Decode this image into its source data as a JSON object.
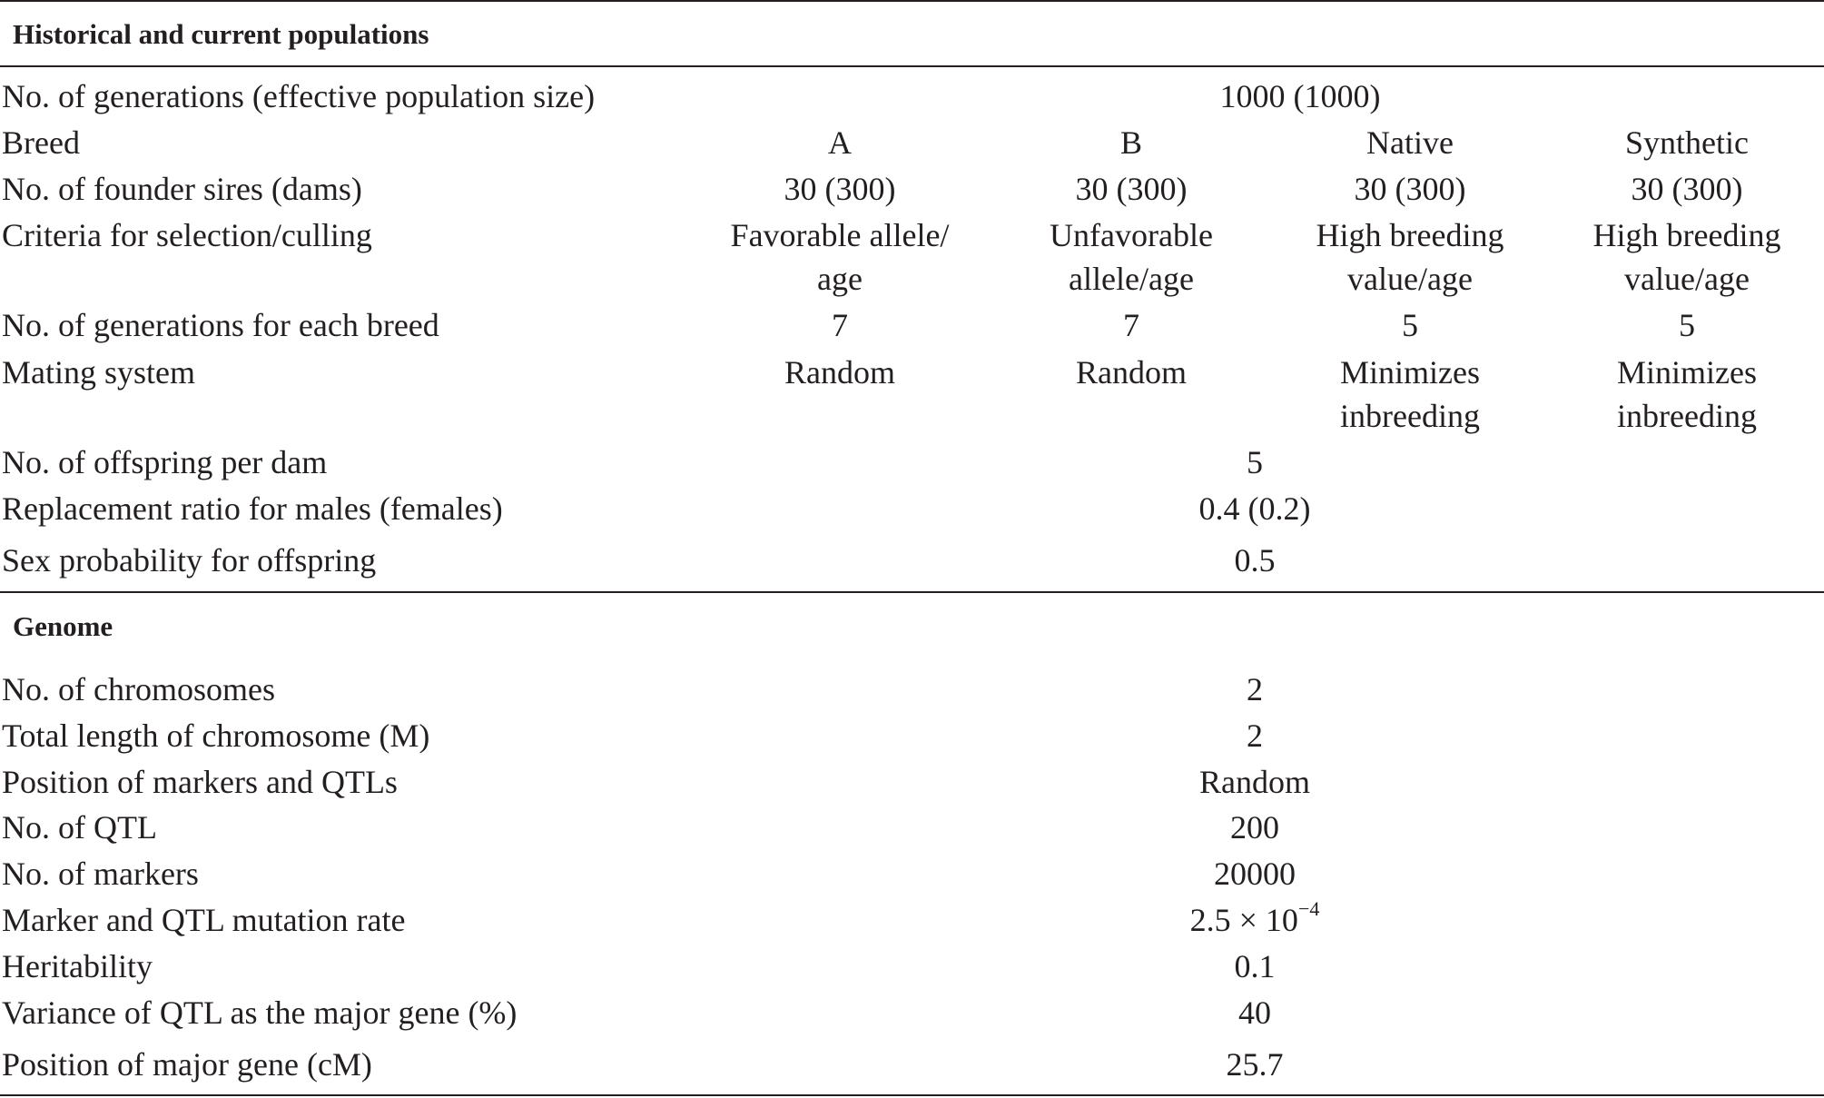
{
  "sections": {
    "historical": {
      "title": "Historical and current populations",
      "rows": {
        "generations": {
          "label": "No. of generations (effective population size)",
          "value": "1000 (1000)"
        },
        "breed": {
          "label": "Breed",
          "values": [
            "A",
            "B",
            "Native",
            "Synthetic"
          ]
        },
        "founders": {
          "label": "No. of founder sires (dams)",
          "values": [
            "30 (300)",
            "30 (300)",
            "30 (300)",
            "30 (300)"
          ]
        },
        "criteria": {
          "label": "Criteria for selection/culling",
          "values": [
            [
              "Favorable allele/",
              "age"
            ],
            [
              "Unfavorable",
              "allele/age"
            ],
            [
              "High breeding",
              "value/age"
            ],
            [
              "High breeding",
              "value/age"
            ]
          ]
        },
        "gen_each": {
          "label": "No. of generations for each breed",
          "values": [
            "7",
            "7",
            "5",
            "5"
          ]
        },
        "mating": {
          "label": "Mating system",
          "values": [
            [
              "Random",
              ""
            ],
            [
              "Random",
              ""
            ],
            [
              "Minimizes",
              "inbreeding"
            ],
            [
              "Minimizes",
              "inbreeding"
            ]
          ]
        },
        "offspring": {
          "label": "No. of offspring per dam",
          "value": "5"
        },
        "replacement": {
          "label": "Replacement ratio for males (females)",
          "value": "0.4 (0.2)"
        },
        "sex_prob": {
          "label": "Sex probability for offspring",
          "value": "0.5"
        }
      }
    },
    "genome": {
      "title": "Genome",
      "rows": {
        "chromosomes": {
          "label": "No. of chromosomes",
          "value": "2"
        },
        "length": {
          "label": "Total length of chromosome (M)",
          "value": "2"
        },
        "position": {
          "label": "Position of markers and QTLs",
          "value": "Random"
        },
        "qtl": {
          "label": "No. of QTL",
          "value": "200"
        },
        "markers": {
          "label": "No. of markers",
          "value": "20000"
        },
        "mutation": {
          "label": "Marker and QTL mutation rate",
          "value_base": "2.5 × 10",
          "value_exp": "−4"
        },
        "heritability": {
          "label": "Heritability",
          "value": "0.1"
        },
        "variance": {
          "label": "Variance of QTL as the major gene (%)",
          "value": "40"
        },
        "major_pos": {
          "label": "Position of major gene (cM)",
          "value": "25.7"
        }
      }
    }
  }
}
